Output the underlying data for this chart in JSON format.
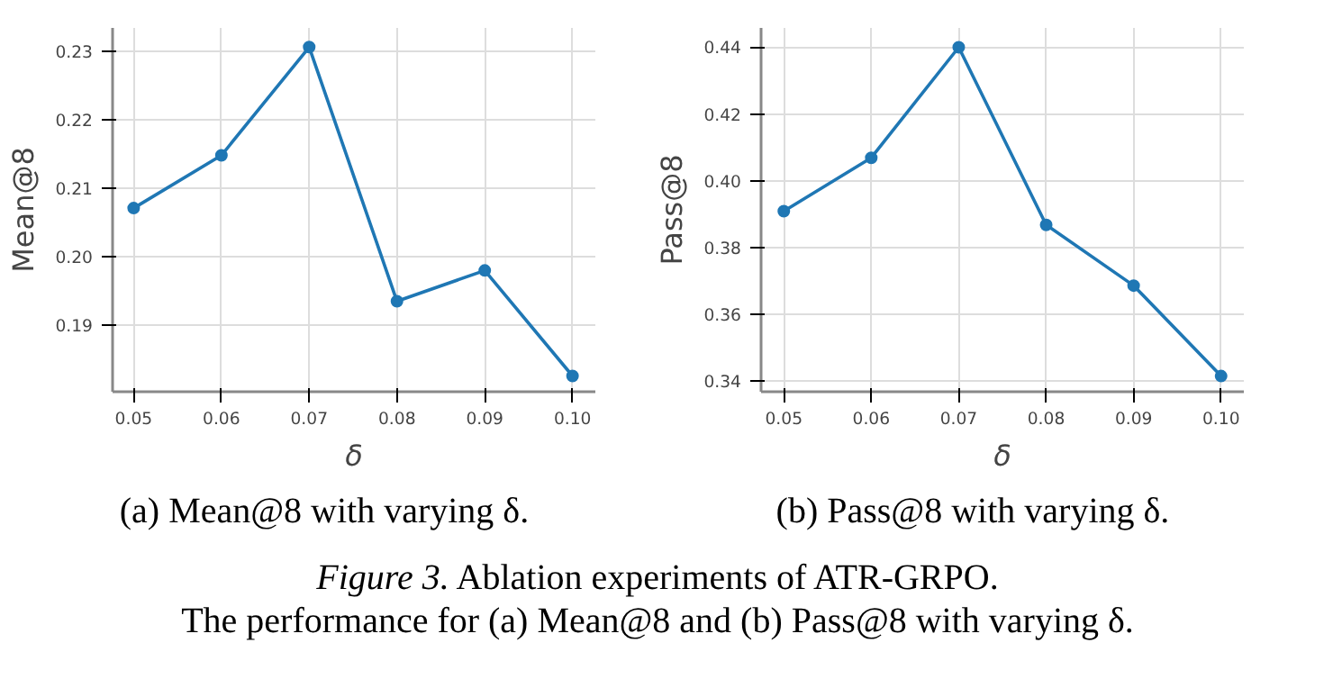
{
  "chart_data": [
    {
      "type": "line",
      "title": "(a) Mean@8 with varying δ.",
      "xlabel": "δ",
      "ylabel": "Mean@8",
      "x": [
        0.05,
        0.06,
        0.07,
        0.08,
        0.09,
        0.1
      ],
      "series": [
        {
          "color": "#1f77b4",
          "values": [
            0.2071,
            0.2148,
            0.2306,
            0.1935,
            0.198,
            0.1826
          ]
        }
      ],
      "xlim": [
        0.0476,
        0.1026
      ],
      "ylim": [
        0.1803,
        0.2334
      ],
      "xticks": [
        {
          "value": 0.05,
          "label": "0.05"
        },
        {
          "value": 0.06,
          "label": "0.06"
        },
        {
          "value": 0.07,
          "label": "0.07"
        },
        {
          "value": 0.08,
          "label": "0.08"
        },
        {
          "value": 0.09,
          "label": "0.09"
        },
        {
          "value": 0.1,
          "label": "0.10"
        }
      ],
      "yticks": [
        {
          "value": 0.19,
          "label": "0.19"
        },
        {
          "value": 0.2,
          "label": "0.20"
        },
        {
          "value": 0.21,
          "label": "0.21"
        },
        {
          "value": 0.22,
          "label": "0.22"
        },
        {
          "value": 0.23,
          "label": "0.23"
        }
      ],
      "grid": true,
      "marker": "circle",
      "line_style": "solid",
      "annotations": [
        "Figure 3.",
        "Ablation experiments of ATR-GRPO.",
        "The performance for (a) Mean@8 and (b) Pass@8 with varying δ."
      ]
    },
    {
      "type": "line",
      "title": "(b) Pass@8 with varying δ.",
      "xlabel": "δ",
      "ylabel": "Pass@8",
      "x": [
        0.05,
        0.06,
        0.07,
        0.08,
        0.09,
        0.1
      ],
      "series": [
        {
          "color": "#1f77b4",
          "values": [
            0.3909,
            0.4069,
            0.44,
            0.3868,
            0.3686,
            0.3415
          ]
        }
      ],
      "xlim": [
        0.0474,
        0.1026
      ],
      "ylim": [
        0.3368,
        0.4458
      ],
      "xticks": [
        {
          "value": 0.05,
          "label": "0.05"
        },
        {
          "value": 0.06,
          "label": "0.06"
        },
        {
          "value": 0.07,
          "label": "0.07"
        },
        {
          "value": 0.08,
          "label": "0.08"
        },
        {
          "value": 0.09,
          "label": "0.09"
        },
        {
          "value": 0.1,
          "label": "0.10"
        }
      ],
      "yticks": [
        {
          "value": 0.34,
          "label": "0.34"
        },
        {
          "value": 0.36,
          "label": "0.36"
        },
        {
          "value": 0.38,
          "label": "0.38"
        },
        {
          "value": 0.4,
          "label": "0.40"
        },
        {
          "value": 0.42,
          "label": "0.42"
        },
        {
          "value": 0.44,
          "label": "0.44"
        }
      ],
      "grid": true,
      "marker": "circle",
      "line_style": "solid"
    }
  ]
}
